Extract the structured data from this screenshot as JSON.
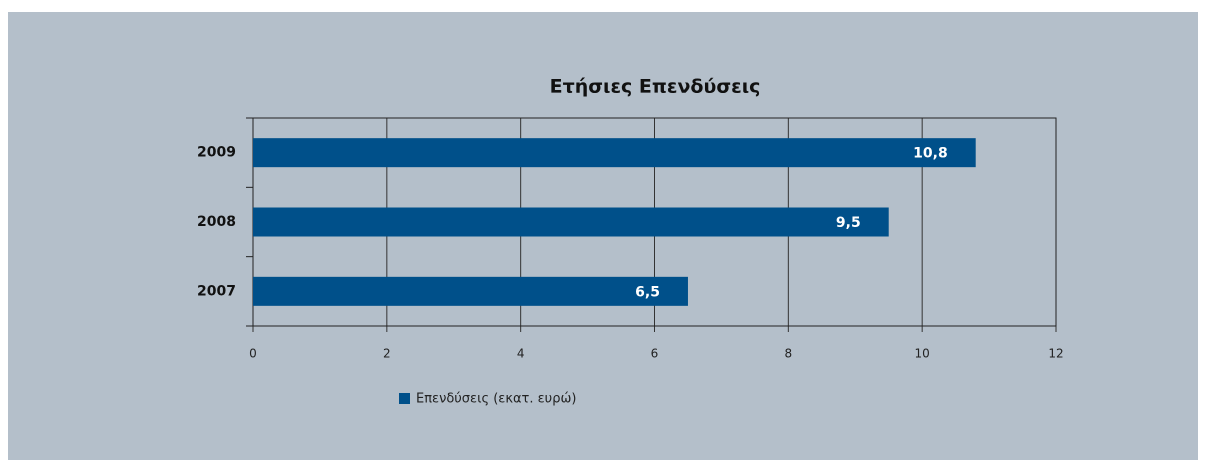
{
  "chart_data": {
    "type": "bar",
    "orientation": "horizontal",
    "title": "Ετήσιες Επενδύσεις",
    "categories": [
      "2007",
      "2008",
      "2009"
    ],
    "series": [
      {
        "name": "Επενδύσεις (εκατ. ευρώ)",
        "color": "#00508a",
        "values": [
          6.5,
          9.5,
          10.8
        ],
        "value_labels": [
          "6,5",
          "9,5",
          "10,8"
        ]
      }
    ],
    "xlim": [
      0,
      12
    ],
    "xticks": [
      0,
      2,
      4,
      6,
      8,
      10,
      12
    ],
    "grid": true,
    "legend": "bottom"
  }
}
